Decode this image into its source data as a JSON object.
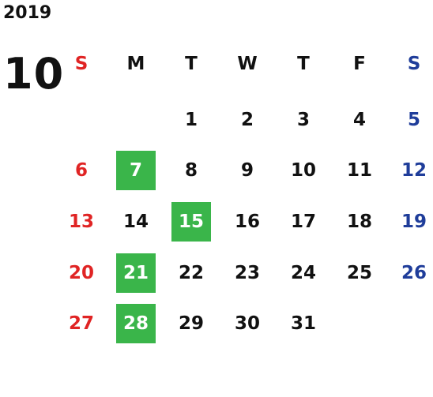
{
  "year": "2019",
  "month": "10",
  "colors": {
    "sunday": "#e02424",
    "saturday": "#1f3d9a",
    "weekday": "#111111",
    "highlight_bg": "#3ab54a",
    "highlight_text": "#ffffff"
  },
  "weekdays": [
    "S",
    "M",
    "T",
    "W",
    "T",
    "F",
    "S"
  ],
  "start_col": 2,
  "days_in_month": 31,
  "highlighted_days": [
    7,
    15,
    21,
    28
  ]
}
